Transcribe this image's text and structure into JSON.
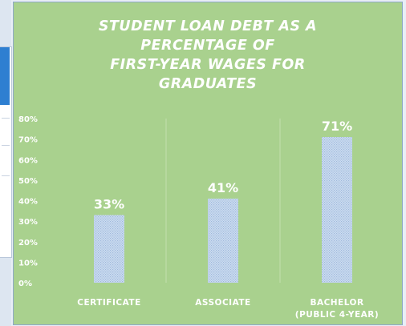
{
  "chart_data": {
    "type": "bar",
    "title": "STUDENT LOAN DEBT AS A\nPERCENTAGE OF\nFIRST-YEAR WAGES FOR\nGRADUATES",
    "categories": [
      "CERTIFICATE",
      "ASSOCIATE",
      "BACHELOR\n(PUBLIC 4-YEAR)"
    ],
    "series": [
      {
        "values": [
          33,
          41,
          71
        ]
      }
    ],
    "data_labels": [
      "33%",
      "41%",
      "71%"
    ],
    "y_ticks": [
      "0%",
      "10%",
      "20%",
      "30%",
      "40%",
      "50%",
      "60%",
      "70%",
      "80%"
    ],
    "ylim": [
      0,
      80
    ],
    "xlabel": "",
    "ylabel": "",
    "grid": "vertical",
    "legend": "none",
    "colors": {
      "background": "#a9d18e",
      "bar_fill": "#ccdcf0",
      "bar_pattern": "#9fb9dc",
      "text": "#ffffff",
      "grid": "#c2dfae"
    }
  }
}
